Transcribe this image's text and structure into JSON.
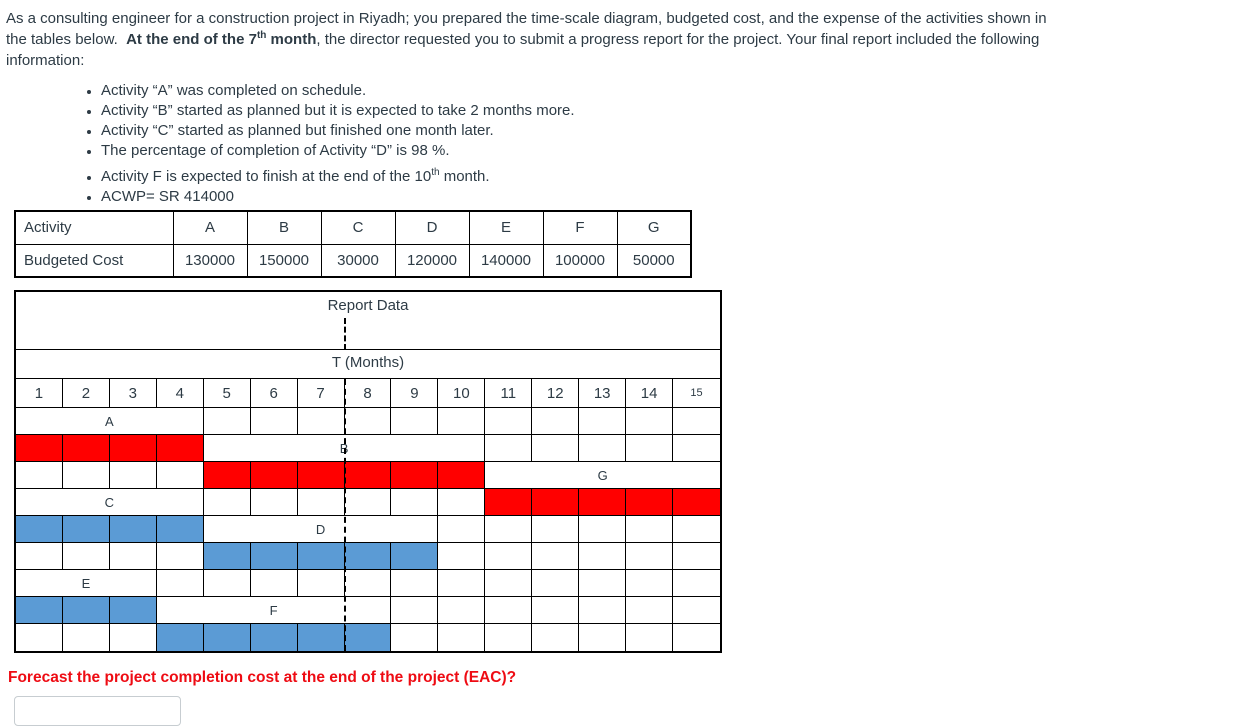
{
  "intro": {
    "segments": [
      {
        "t": "As a consulting engineer for a construction project in Riyadh; you prepared the time-scale diagram, budgeted cost, and the expense of the activities shown in"
      },
      {
        "br": true
      },
      {
        "t": "the tables below.  "
      },
      {
        "t": "At the end of the 7",
        "b": true
      },
      {
        "t": "th",
        "b": true,
        "sup": true
      },
      {
        "t": " month",
        "b": true
      },
      {
        "t": ", the director requested you to submit a progress report for the project. Your final report included the following"
      },
      {
        "br": true
      },
      {
        "t": "information:"
      }
    ]
  },
  "bullets": {
    "items": [
      {
        "segments": [
          {
            "t": "Activity “A” was completed on schedule."
          }
        ]
      },
      {
        "segments": [
          {
            "t": "Activity “B” started as planned but it is expected to take 2 months more."
          }
        ]
      },
      {
        "segments": [
          {
            "t": "Activity “C” started as planned but finished one month later."
          }
        ]
      },
      {
        "segments": [
          {
            "t": "The percentage of completion of Activity “D” is 98 %."
          }
        ]
      },
      {
        "segments": [
          {
            "t": "Activity F is expected to finish at the end of the 10"
          },
          {
            "t": "th",
            "sup": true
          },
          {
            "t": " month."
          }
        ]
      },
      {
        "segments": [
          {
            "t": "ACWP= SR 414000"
          }
        ]
      }
    ]
  },
  "budget_table": {
    "corner_label": "Activity",
    "row_label": "Budgeted Cost",
    "columns": [
      "A",
      "B",
      "C",
      "D",
      "E",
      "F",
      "G"
    ],
    "costs": [
      "130000",
      "150000",
      "30000",
      "120000",
      "140000",
      "100000",
      "50000"
    ]
  },
  "gantt": {
    "title": "Report Data",
    "axis_label": "T (Months)",
    "months": [
      "1",
      "2",
      "3",
      "4",
      "5",
      "6",
      "7",
      "8",
      "9",
      "10",
      "11",
      "12",
      "13",
      "14",
      "15"
    ],
    "report_boundary_after_month": 7,
    "colors": {
      "bar_red": "#ff0000",
      "bar_blue": "#5b9bd5"
    },
    "rows": [
      [
        {
          "s": 4,
          "t": "label",
          "x": "A"
        },
        {
          "s": 11,
          "t": "cells"
        }
      ],
      [
        {
          "s": 4,
          "t": "red"
        },
        {
          "s": 6,
          "t": "label",
          "x": "B"
        },
        {
          "s": 5,
          "t": "cells"
        }
      ],
      [
        {
          "s": 4,
          "t": "cells"
        },
        {
          "s": 6,
          "t": "red"
        },
        {
          "s": 5,
          "t": "label",
          "x": "G"
        }
      ],
      [
        {
          "s": 4,
          "t": "label",
          "x": "C"
        },
        {
          "s": 6,
          "t": "cells"
        },
        {
          "s": 5,
          "t": "red"
        }
      ],
      [
        {
          "s": 4,
          "t": "blue"
        },
        {
          "s": 5,
          "t": "label",
          "x": "D"
        },
        {
          "s": 6,
          "t": "cells"
        }
      ],
      [
        {
          "s": 4,
          "t": "cells"
        },
        {
          "s": 5,
          "t": "blue"
        },
        {
          "s": 6,
          "t": "cells"
        }
      ],
      [
        {
          "s": 3,
          "t": "label",
          "x": "E"
        },
        {
          "s": 12,
          "t": "cells"
        }
      ],
      [
        {
          "s": 3,
          "t": "blue"
        },
        {
          "s": 5,
          "t": "label",
          "x": "F"
        },
        {
          "s": 7,
          "t": "cells"
        }
      ],
      [
        {
          "s": 3,
          "t": "cells"
        },
        {
          "s": 5,
          "t": "blue"
        },
        {
          "s": 7,
          "t": "cells"
        }
      ]
    ]
  },
  "question": {
    "text": "Forecast the project completion cost at the end of the project (EAC)?",
    "color": "#ee0b13"
  },
  "answer": {
    "value": "",
    "placeholder": ""
  }
}
